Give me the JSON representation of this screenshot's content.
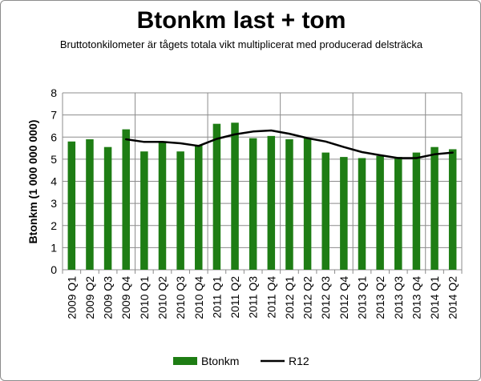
{
  "chart_data": {
    "type": "bar",
    "title": "Btonkm last + tom",
    "subtitle": "Bruttotonkilometer  är tågets totala vikt multiplicerat med producerad delsträcka",
    "ylabel": "Btonkm (1 000 000 000)",
    "xlabel": "",
    "ylim": [
      0,
      8
    ],
    "yticks": [
      0,
      1,
      2,
      3,
      4,
      5,
      6,
      7,
      8
    ],
    "grid": true,
    "legend_position": "bottom",
    "categories": [
      "2009 Q1",
      "2009 Q2",
      "2009 Q3",
      "2009 Q4",
      "2010 Q1",
      "2010 Q2",
      "2010 Q3",
      "2010 Q4",
      "2011 Q1",
      "2011 Q2",
      "2011 Q3",
      "2011 Q4",
      "2012 Q1",
      "2012 Q2",
      "2012 Q3",
      "2012 Q4",
      "2013 Q1",
      "2013 Q2",
      "2013 Q3",
      "2013 Q4",
      "2014 Q1",
      "2014 Q2"
    ],
    "series": [
      {
        "name": "Btonkm",
        "type": "bar",
        "color": "#1e7d14",
        "values": [
          5.8,
          5.9,
          5.55,
          6.35,
          5.35,
          5.8,
          5.35,
          5.65,
          6.6,
          6.65,
          5.95,
          6.05,
          5.9,
          5.95,
          5.3,
          5.1,
          5.05,
          5.15,
          5.1,
          5.3,
          5.55,
          5.45
        ]
      },
      {
        "name": "R12",
        "type": "line",
        "color": "#000000",
        "values": [
          null,
          null,
          null,
          5.9,
          5.78,
          5.78,
          5.72,
          5.6,
          5.92,
          6.12,
          6.25,
          6.3,
          6.15,
          5.95,
          5.8,
          5.55,
          5.32,
          5.18,
          5.05,
          5.05,
          5.22,
          5.3
        ]
      }
    ]
  }
}
